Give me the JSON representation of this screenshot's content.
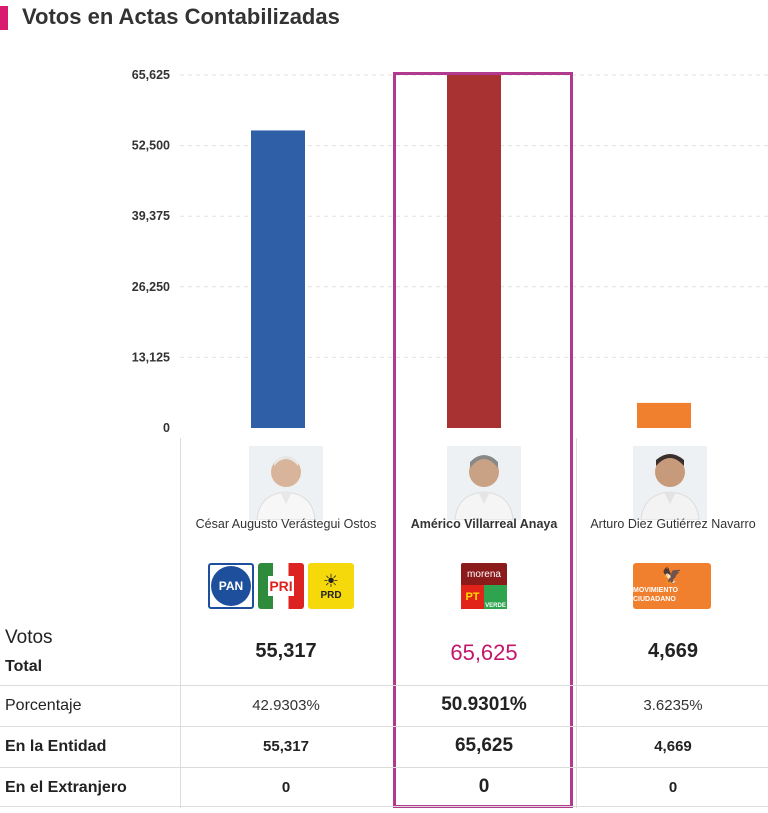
{
  "header": {
    "title": "Votos en Actas Contabilizadas",
    "accent": "#d81b6e"
  },
  "chart_data": {
    "type": "bar",
    "categories": [
      "César Augusto Verástegui Ostos",
      "Américo Villarreal Anaya",
      "Arturo Diez Gutiérrez Navarro"
    ],
    "values": [
      55317,
      65625,
      4669
    ],
    "colors": [
      "#2f5fa7",
      "#a83232",
      "#f07f2e"
    ],
    "ylim": [
      0,
      65625
    ],
    "yticks": [
      "65,625",
      "52,500",
      "39,375",
      "26,250",
      "13,125",
      "0"
    ],
    "ytick_values": [
      65625,
      52500,
      39375,
      26250,
      13125,
      0
    ],
    "grid": true,
    "highlighted_category": "Américo Villarreal Anaya",
    "highlight_color": "#b23a8e"
  },
  "candidates": [
    {
      "name": "César Augusto Verástegui Ostos",
      "logos": [
        "PAN",
        "PRI",
        "PRD"
      ],
      "votos_total": "55,317",
      "porcentaje": "42.9303%",
      "entidad": "55,317",
      "extranjero": "0"
    },
    {
      "name": "Américo Villarreal Anaya",
      "logos": [
        "morena",
        "PT",
        "VERDE"
      ],
      "votos_total": "65,625",
      "porcentaje": "50.9301%",
      "entidad": "65,625",
      "extranjero": "0"
    },
    {
      "name": "Arturo Diez Gutiérrez Navarro",
      "logos": [
        "MOVIMIENTO CIUDADANO"
      ],
      "votos_total": "4,669",
      "porcentaje": "3.6235%",
      "entidad": "4,669",
      "extranjero": "0"
    }
  ],
  "table": {
    "votos_label": "Votos",
    "total_label": "Total",
    "porcentaje_label": "Porcentaje",
    "entidad_label": "En la Entidad",
    "extranjero_label": "En el Extranjero"
  }
}
